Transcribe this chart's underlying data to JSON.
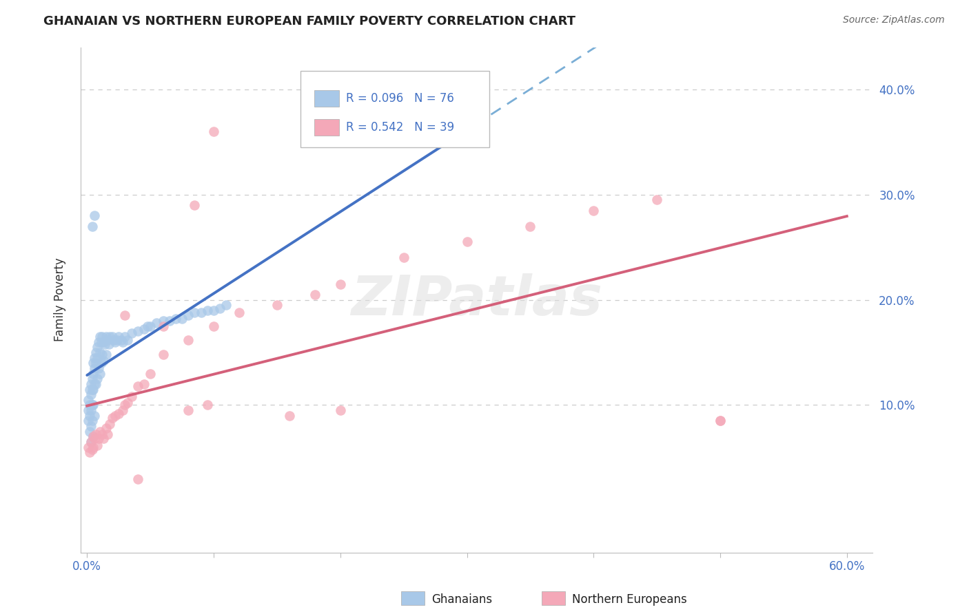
{
  "title": "GHANAIAN VS NORTHERN EUROPEAN FAMILY POVERTY CORRELATION CHART",
  "source": "Source: ZipAtlas.com",
  "xlabel_ghanaians": "Ghanaians",
  "xlabel_northern": "Northern Europeans",
  "ylabel": "Family Poverty",
  "xlim": [
    -0.005,
    0.62
  ],
  "ylim": [
    -0.04,
    0.44
  ],
  "xticks": [
    0.0,
    0.1,
    0.2,
    0.3,
    0.4,
    0.5,
    0.6
  ],
  "yticks": [
    0.0,
    0.1,
    0.2,
    0.3,
    0.4
  ],
  "ghanaian_color": "#a8c8e8",
  "northern_color": "#f4a8b8",
  "trend_blue_solid": "#4472c4",
  "trend_blue_dash": "#7aaed6",
  "trend_pink": "#d4607a",
  "legend_R_blue": "R = 0.096",
  "legend_N_blue": "N = 76",
  "legend_R_pink": "R = 0.542",
  "legend_N_pink": "N = 39",
  "axis_label_color": "#4472c4",
  "watermark": "ZIPatlas",
  "background_color": "#ffffff",
  "grid_color": "#cccccc",
  "title_fontsize": 13,
  "gh_x": [
    0.001,
    0.001,
    0.001,
    0.002,
    0.002,
    0.002,
    0.002,
    0.003,
    0.003,
    0.003,
    0.003,
    0.003,
    0.004,
    0.004,
    0.004,
    0.004,
    0.005,
    0.005,
    0.005,
    0.005,
    0.005,
    0.006,
    0.006,
    0.006,
    0.006,
    0.007,
    0.007,
    0.007,
    0.008,
    0.008,
    0.008,
    0.009,
    0.009,
    0.01,
    0.01,
    0.01,
    0.011,
    0.011,
    0.012,
    0.012,
    0.013,
    0.013,
    0.014,
    0.015,
    0.015,
    0.016,
    0.017,
    0.018,
    0.02,
    0.021,
    0.022,
    0.024,
    0.025,
    0.027,
    0.028,
    0.03,
    0.032,
    0.035,
    0.04,
    0.045,
    0.048,
    0.05,
    0.055,
    0.06,
    0.065,
    0.07,
    0.075,
    0.08,
    0.085,
    0.09,
    0.095,
    0.1,
    0.105,
    0.11,
    0.004,
    0.006
  ],
  "gh_y": [
    0.105,
    0.095,
    0.085,
    0.115,
    0.1,
    0.09,
    0.075,
    0.12,
    0.11,
    0.095,
    0.08,
    0.065,
    0.125,
    0.115,
    0.1,
    0.085,
    0.14,
    0.13,
    0.115,
    0.1,
    0.07,
    0.145,
    0.135,
    0.12,
    0.09,
    0.15,
    0.14,
    0.12,
    0.155,
    0.145,
    0.125,
    0.16,
    0.135,
    0.165,
    0.15,
    0.13,
    0.16,
    0.14,
    0.165,
    0.148,
    0.16,
    0.142,
    0.158,
    0.165,
    0.148,
    0.162,
    0.158,
    0.165,
    0.165,
    0.162,
    0.16,
    0.162,
    0.165,
    0.162,
    0.16,
    0.165,
    0.162,
    0.168,
    0.17,
    0.172,
    0.175,
    0.175,
    0.178,
    0.18,
    0.18,
    0.182,
    0.182,
    0.185,
    0.188,
    0.188,
    0.19,
    0.19,
    0.192,
    0.195,
    0.27,
    0.28
  ],
  "ne_x": [
    0.001,
    0.002,
    0.003,
    0.004,
    0.005,
    0.005,
    0.006,
    0.007,
    0.008,
    0.009,
    0.01,
    0.012,
    0.013,
    0.015,
    0.016,
    0.018,
    0.02,
    0.022,
    0.025,
    0.028,
    0.03,
    0.032,
    0.035,
    0.04,
    0.045,
    0.05,
    0.06,
    0.08,
    0.1,
    0.12,
    0.15,
    0.18,
    0.2,
    0.25,
    0.3,
    0.35,
    0.4,
    0.45,
    0.5
  ],
  "ne_y": [
    0.06,
    0.055,
    0.065,
    0.058,
    0.07,
    0.06,
    0.068,
    0.072,
    0.062,
    0.068,
    0.075,
    0.072,
    0.068,
    0.078,
    0.072,
    0.082,
    0.088,
    0.09,
    0.092,
    0.095,
    0.1,
    0.102,
    0.108,
    0.118,
    0.12,
    0.13,
    0.148,
    0.162,
    0.175,
    0.188,
    0.195,
    0.205,
    0.215,
    0.24,
    0.255,
    0.27,
    0.285,
    0.295,
    0.085
  ],
  "ne_outliers_x": [
    0.085,
    0.1,
    0.16,
    0.2,
    0.08,
    0.095,
    0.03,
    0.06,
    0.04,
    0.5
  ],
  "ne_outliers_y": [
    0.29,
    0.36,
    0.09,
    0.095,
    0.095,
    0.1,
    0.185,
    0.175,
    0.03,
    0.085
  ]
}
